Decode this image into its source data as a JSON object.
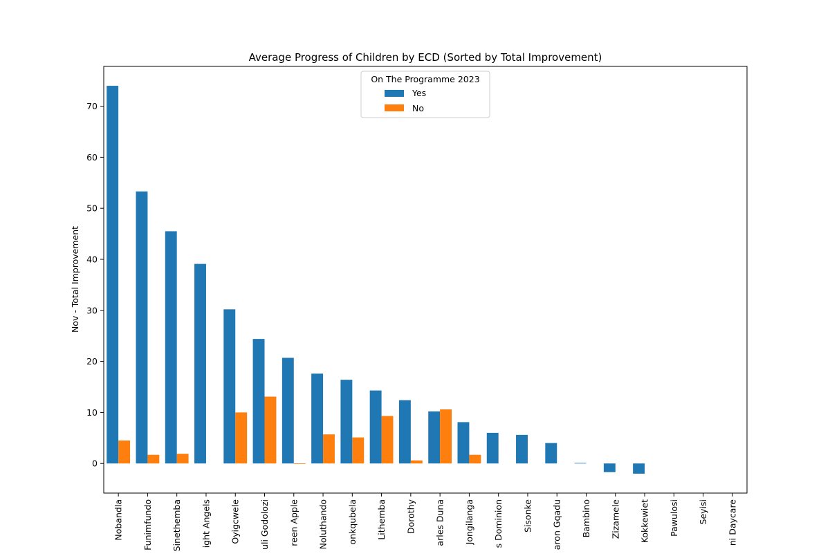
{
  "chart_data": {
    "type": "bar",
    "title": "Average Progress of Children by ECD (Sorted by Total Improvement)",
    "xlabel": "",
    "ylabel": "Nov - Total Improvement",
    "ylim": [
      -5.8,
      77.8
    ],
    "yticks": [
      0,
      10,
      20,
      30,
      40,
      50,
      60,
      70
    ],
    "grid": false,
    "legend": {
      "title": "On The Programme 2023",
      "placement": "top-center"
    },
    "categories": [
      "Nobandla",
      "Funimfundo",
      "Sinethemba",
      "Bright Angels",
      "Oyigcwele",
      "Uli Godolozi",
      "Green Apple",
      "Noluthando",
      "Sonkqubela",
      "Lithemba",
      "Dorothy",
      "Charles Duna",
      "Jongilanga",
      "His Dominion",
      "Sisonke",
      "Aaron Gqadu",
      "Bambino",
      "Zizamele",
      "Kokkewiet",
      "Pawulosi",
      "Seyisi",
      "Nandi Daycare"
    ],
    "category_labels_visible": [
      "Nobandla",
      "Funimfundo",
      "Sinethemba",
      "ight Angels",
      "Oyigcwele",
      "uli Godolozi",
      "reen Apple",
      "Noluthando",
      "onkqubela",
      "Lithemba",
      "Dorothy",
      "arles Duna",
      "Jongilanga",
      "s Dominion",
      "Sisonke",
      "aron Gqadu",
      "Bambino",
      "Zizamele",
      "Kokkewiet",
      "Pawulosi",
      "Seyisi",
      "ni Daycare"
    ],
    "series": [
      {
        "name": "Yes",
        "color": "#1f77b4",
        "values": [
          74.0,
          53.3,
          45.5,
          39.1,
          30.2,
          24.4,
          20.7,
          17.6,
          16.4,
          14.3,
          12.4,
          10.2,
          8.1,
          6.0,
          5.6,
          4.0,
          0.1,
          -1.7,
          -2.0,
          null,
          null,
          null
        ]
      },
      {
        "name": "No",
        "color": "#ff7f0e",
        "values": [
          4.5,
          1.7,
          1.9,
          null,
          10.0,
          13.1,
          -0.1,
          5.7,
          5.1,
          9.3,
          0.6,
          10.6,
          1.7,
          null,
          null,
          null,
          null,
          null,
          null,
          null,
          null,
          null
        ]
      }
    ]
  }
}
